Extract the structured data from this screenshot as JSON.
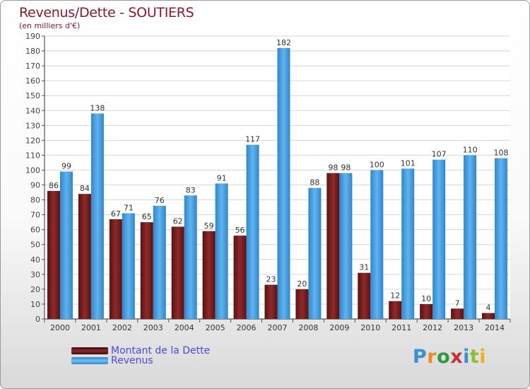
{
  "header": {
    "title": "Revenus/Dette - SOUTIERS",
    "subtitle": "(en milliers d'€)"
  },
  "legend": {
    "debt_label": "Montant de la Dette",
    "revenue_label": "Revenus"
  },
  "logo": {
    "letters": [
      "P",
      "r",
      "o",
      "x",
      "i",
      "t",
      "i"
    ],
    "colors": [
      "#3a8fd8",
      "#f08a1c",
      "#2d9a3c",
      "#cc2f2f",
      "#3a8fd8",
      "#8fbf2f",
      "#f0b01c"
    ]
  },
  "colors": {
    "debt": "#7a1c1c",
    "revenue": "#4aa3e0"
  },
  "chart_data": {
    "type": "bar",
    "title": "Revenus/Dette - SOUTIERS",
    "ylabel": "(en milliers d'€)",
    "ylim": [
      0,
      190
    ],
    "yticks": [
      0,
      10,
      20,
      30,
      40,
      50,
      60,
      70,
      80,
      90,
      100,
      110,
      120,
      130,
      140,
      150,
      160,
      170,
      180,
      190
    ],
    "grid": true,
    "legend_position": "bottom-left",
    "categories": [
      "2000",
      "2001",
      "2002",
      "2003",
      "2004",
      "2005",
      "2006",
      "2007",
      "2008",
      "2009",
      "2010",
      "2011",
      "2012",
      "2013",
      "2014"
    ],
    "series": [
      {
        "name": "Montant de la Dette",
        "values": [
          86,
          84,
          67,
          65,
          62,
          59,
          56,
          23,
          20,
          98,
          31,
          12,
          10,
          7,
          4
        ]
      },
      {
        "name": "Revenus",
        "values": [
          99,
          138,
          71,
          76,
          83,
          91,
          117,
          182,
          88,
          98,
          100,
          101,
          107,
          110,
          108
        ]
      }
    ]
  }
}
